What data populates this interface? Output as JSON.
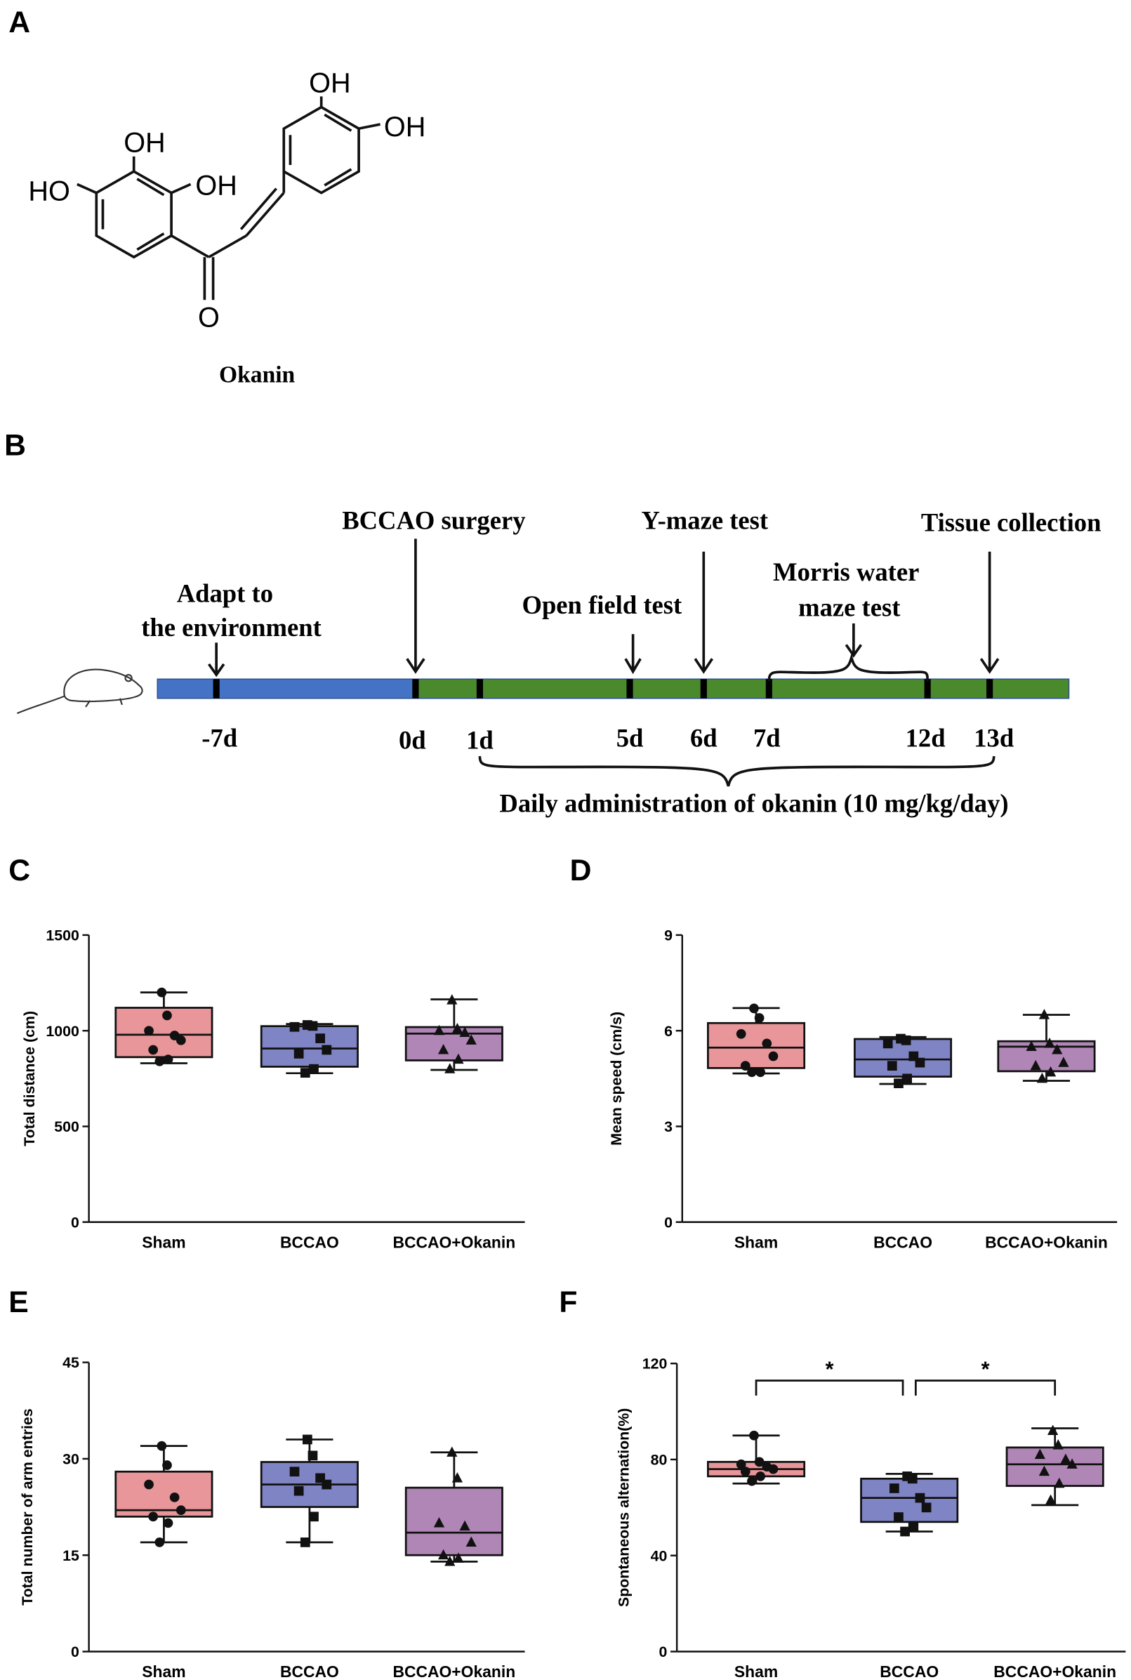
{
  "structure": {
    "label": "A",
    "atoms": [
      "OH",
      "OH",
      "HO",
      "OH",
      "OH",
      "O"
    ],
    "name": "Okanin"
  },
  "timeline": {
    "label": "B",
    "events": [
      [
        "Adapt to",
        "the environment"
      ],
      [
        "BCCAO surgery"
      ],
      [
        "Open field test"
      ],
      [
        "Y-maze test"
      ],
      [
        "Morris water",
        "maze test"
      ],
      [
        "Tissue collection"
      ]
    ],
    "days": [
      "-7d",
      "0d",
      "1d",
      "5d",
      "6d",
      "7d",
      "12d",
      "13d"
    ],
    "treatment": "Daily administration of okanin (10 mg/kg/day)"
  },
  "chart_data": [
    {
      "type": "box",
      "label": "C",
      "ylabel": "Total distance (cm)",
      "ylim": [
        0,
        1500
      ],
      "yticks": [
        0,
        500,
        1000,
        1500
      ],
      "series": [
        {
          "name": "Sham",
          "color": "#e8969a",
          "marker": "circle",
          "min": 830,
          "q1": 862,
          "median": 979,
          "q3": 1120,
          "max": 1200,
          "points": [
            1200,
            1080,
            1000,
            975,
            950,
            900,
            850,
            840
          ]
        },
        {
          "name": "BCCAO",
          "color": "#7f84c4",
          "marker": "square",
          "min": 778,
          "q1": 812,
          "median": 907,
          "q3": 1024,
          "max": 1035,
          "points": [
            1030,
            1025,
            1020,
            960,
            900,
            880,
            800,
            780
          ]
        },
        {
          "name": "BCCAO+Okanin",
          "color": "#b086b6",
          "marker": "triangle",
          "min": 795,
          "q1": 845,
          "median": 985,
          "q3": 1019,
          "max": 1164,
          "points": [
            1160,
            1010,
            1000,
            990,
            950,
            900,
            850,
            800
          ]
        }
      ]
    },
    {
      "type": "box",
      "label": "D",
      "ylabel": "Mean speed (cm/s)",
      "ylim": [
        0,
        9
      ],
      "yticks": [
        0,
        3,
        6,
        9
      ],
      "series": [
        {
          "name": "Sham",
          "color": "#e8969a",
          "marker": "circle",
          "min": 4.66,
          "q1": 4.83,
          "median": 5.47,
          "q3": 6.24,
          "max": 6.71,
          "points": [
            6.7,
            6.4,
            5.9,
            5.6,
            5.2,
            4.9,
            4.7,
            4.7
          ]
        },
        {
          "name": "BCCAO",
          "color": "#7f84c4",
          "marker": "square",
          "min": 4.33,
          "q1": 4.56,
          "median": 5.1,
          "q3": 5.74,
          "max": 5.8,
          "points": [
            5.75,
            5.7,
            5.6,
            5.2,
            5.0,
            4.9,
            4.5,
            4.35
          ]
        },
        {
          "name": "BCCAO+Okanin",
          "color": "#b086b6",
          "marker": "triangle",
          "min": 4.43,
          "q1": 4.73,
          "median": 5.5,
          "q3": 5.67,
          "max": 6.5,
          "points": [
            6.5,
            5.6,
            5.5,
            5.4,
            5.0,
            4.9,
            4.7,
            4.5
          ]
        }
      ]
    },
    {
      "type": "box",
      "label": "E",
      "ylabel": "Total number of arm entries",
      "ylim": [
        0,
        45
      ],
      "yticks": [
        0,
        15,
        30,
        45
      ],
      "series": [
        {
          "name": "Sham",
          "color": "#e8969a",
          "marker": "circle",
          "min": 17,
          "q1": 21,
          "median": 22,
          "q3": 28,
          "max": 32,
          "points": [
            32,
            29,
            26,
            24,
            22,
            21,
            20,
            17
          ]
        },
        {
          "name": "BCCAO",
          "color": "#7f84c4",
          "marker": "square",
          "min": 17,
          "q1": 22.5,
          "median": 26,
          "q3": 29.5,
          "max": 33,
          "points": [
            33,
            30.5,
            28,
            27,
            26,
            25,
            21,
            17
          ]
        },
        {
          "name": "BCCAO+Okanin",
          "color": "#b086b6",
          "marker": "triangle",
          "min": 14,
          "q1": 15,
          "median": 18.5,
          "q3": 25.5,
          "max": 31,
          "points": [
            31,
            27,
            20,
            19.5,
            17,
            15,
            14.5,
            14
          ]
        }
      ]
    },
    {
      "type": "box",
      "label": "F",
      "ylabel": "Spontaneous alternation(%)",
      "ylim": [
        0,
        120
      ],
      "yticks": [
        0,
        40,
        80,
        120
      ],
      "series": [
        {
          "name": "Sham",
          "color": "#e8969a",
          "marker": "circle",
          "min": 70,
          "q1": 73,
          "median": 76,
          "q3": 79,
          "max": 90,
          "points": [
            90,
            79,
            78,
            77,
            76,
            75,
            73,
            71
          ]
        },
        {
          "name": "BCCAO",
          "color": "#7f84c4",
          "marker": "square",
          "min": 50,
          "q1": 54,
          "median": 64,
          "q3": 72,
          "max": 74,
          "points": [
            73,
            72,
            68,
            64,
            60,
            56,
            52,
            50
          ]
        },
        {
          "name": "BCCAO+Okanin",
          "color": "#b086b6",
          "marker": "triangle",
          "min": 61,
          "q1": 69,
          "median": 78,
          "q3": 85,
          "max": 93,
          "points": [
            92,
            86,
            82,
            80,
            78,
            75,
            70,
            63
          ]
        }
      ],
      "annotations": [
        {
          "from": 0,
          "to": 1,
          "label": "*"
        },
        {
          "from": 1,
          "to": 2,
          "label": "*"
        }
      ]
    }
  ]
}
